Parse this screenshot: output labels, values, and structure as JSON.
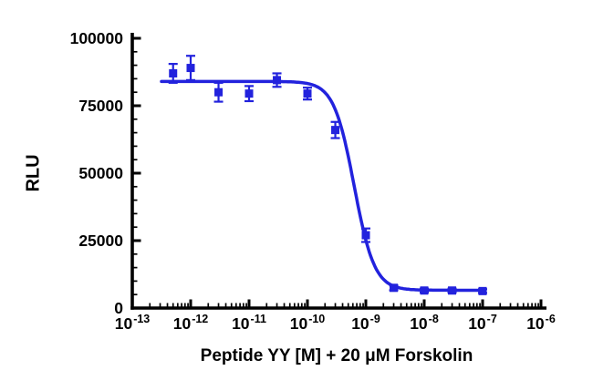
{
  "chart_data": {
    "type": "scatter",
    "title": "",
    "xlabel": "Peptide YY [M] + 20 μM Forskolin",
    "ylabel": "RLU",
    "x_scale": "log",
    "x_range_exponents": [
      -13,
      -6
    ],
    "x_tick_exponents": [
      -13,
      -12,
      -11,
      -10,
      -9,
      -8,
      -7,
      -6
    ],
    "y_ticks": [
      0,
      25000,
      50000,
      75000,
      100000
    ],
    "y_minor_step": 5000,
    "ylim": [
      0,
      100000
    ],
    "grid": false,
    "legend": "none",
    "axis_color": "#000000",
    "background": "#ffffff",
    "series": [
      {
        "name": "Peptide YY + 20 uM Forskolin",
        "color": "#2222dd",
        "marker": "square",
        "x": [
          5e-13,
          1e-12,
          3e-12,
          1e-11,
          3e-11,
          1e-10,
          3e-10,
          1e-09,
          3e-09,
          1e-08,
          3e-08,
          1e-07
        ],
        "y": [
          87000,
          89000,
          80000,
          79500,
          84500,
          79500,
          66000,
          27000,
          7500,
          6500,
          6500,
          6300
        ],
        "error": [
          3500,
          4500,
          3500,
          2800,
          2500,
          2200,
          3000,
          2500,
          900,
          700,
          700,
          700
        ]
      }
    ],
    "fit": {
      "model": "4PL-sigmoidal",
      "top": 84000,
      "bottom": 6600,
      "logIC50": -9.2,
      "hillslope": 2.5
    }
  }
}
